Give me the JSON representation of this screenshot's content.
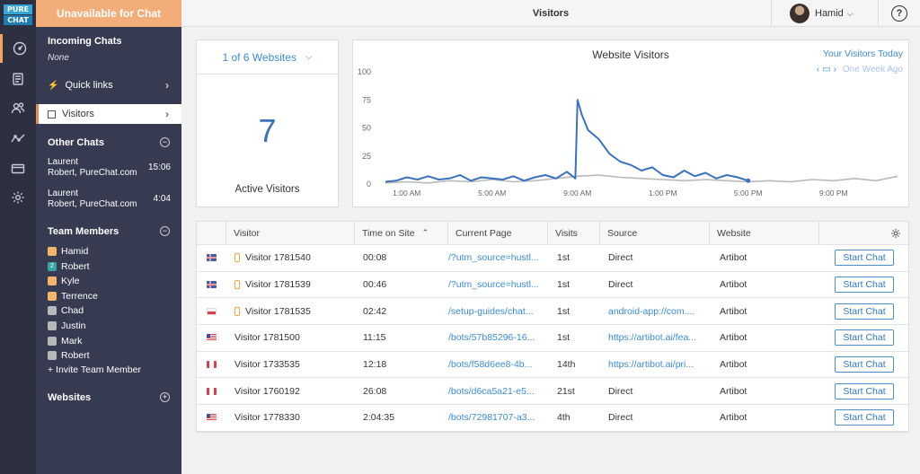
{
  "brand": {
    "logo_line1": "PURE",
    "logo_line2": "CHAT"
  },
  "sidebar": {
    "status_button": "Unavailable for Chat",
    "incoming": {
      "title": "Incoming Chats",
      "value": "None"
    },
    "nav": [
      {
        "label": "Quick links",
        "icon": "lightning-icon"
      },
      {
        "label": "Visitors",
        "icon": "visitors-icon",
        "active": true
      }
    ],
    "other_chats": {
      "title": "Other Chats",
      "toggle": "−",
      "items": [
        {
          "name": "Laurent",
          "detail": "Robert,  PureChat.com",
          "time": "15:06"
        },
        {
          "name": "Laurent",
          "detail": "Robert,  PureChat.com",
          "time": "4:04"
        }
      ]
    },
    "team": {
      "title": "Team Members",
      "toggle": "−",
      "members": [
        {
          "name": "Hamid",
          "color": "#f3b46c",
          "badge": ""
        },
        {
          "name": "Robert",
          "color": "#3aa3a6",
          "badge": "2"
        },
        {
          "name": "Kyle",
          "color": "#f3b46c",
          "badge": ""
        },
        {
          "name": "Terrence",
          "color": "#f3b46c",
          "badge": ""
        },
        {
          "name": "Chad",
          "color": "#b8b8b8",
          "badge": ""
        },
        {
          "name": "Justin",
          "color": "#b8b8b8",
          "badge": ""
        },
        {
          "name": "Mark",
          "color": "#b8b8b8",
          "badge": ""
        },
        {
          "name": "Robert",
          "color": "#b8b8b8",
          "badge": ""
        }
      ],
      "invite": "+ Invite Team Member"
    },
    "websites": {
      "title": "Websites",
      "toggle": "+"
    }
  },
  "header": {
    "title": "Visitors",
    "user": "Hamid",
    "help": "?"
  },
  "summary": {
    "site_select": "1 of 6 Websites",
    "count": "7",
    "label": "Active Visitors"
  },
  "chart_data": {
    "type": "line",
    "title": "Website Visitors",
    "link": "Your Visitors Today",
    "range_label": "One Week Ago",
    "ylim": [
      0,
      100
    ],
    "yticks": [
      "100",
      "75",
      "50",
      "25",
      "0"
    ],
    "x_ticks": [
      "1:00 AM",
      "5:00 AM",
      "9:00 AM",
      "1:00 PM",
      "5:00 PM",
      "9:00 PM"
    ],
    "x_tick_hours": [
      1,
      5,
      9,
      13,
      17,
      21
    ],
    "xlim": [
      0,
      24
    ],
    "series": [
      {
        "color": "#3a72c0",
        "x": [
          0,
          0.5,
          1,
          1.5,
          2,
          2.5,
          3,
          3.5,
          4,
          4.5,
          5,
          5.5,
          6,
          6.5,
          7,
          7.5,
          8,
          8.5,
          8.9,
          9,
          9.2,
          9.5,
          10,
          10.5,
          11,
          11.5,
          12,
          12.5,
          13,
          13.5,
          14,
          14.5,
          15,
          15.5,
          16,
          16.5,
          17
        ],
        "y": [
          2,
          3,
          6,
          4,
          7,
          4,
          5,
          8,
          3,
          6,
          5,
          4,
          7,
          3,
          6,
          8,
          5,
          11,
          5,
          75,
          62,
          48,
          40,
          27,
          20,
          17,
          12,
          15,
          8,
          6,
          12,
          7,
          10,
          5,
          8,
          6,
          3
        ]
      },
      {
        "color": "#b9b9b9",
        "x": [
          0,
          1,
          2,
          3,
          4,
          5,
          6,
          7,
          8,
          9,
          10,
          11,
          12,
          13,
          14,
          15,
          16,
          17,
          18,
          19,
          20,
          21,
          22,
          23,
          24
        ],
        "y": [
          1,
          2,
          1,
          3,
          2,
          4,
          2,
          3,
          5,
          7,
          8,
          6,
          5,
          4,
          3,
          4,
          3,
          2,
          3,
          2,
          4,
          3,
          5,
          3,
          7
        ]
      }
    ]
  },
  "table": {
    "headers": [
      "Visitor",
      "Time on Site",
      "Current Page",
      "Visits",
      "Source",
      "Website"
    ],
    "start_label": "Start Chat",
    "rows": [
      {
        "flag": "is",
        "mobile": true,
        "visitor": "Visitor 1781540",
        "time": "00:08",
        "page": "/?utm_source=hustl...",
        "visits": "1st",
        "source": "Direct",
        "source_link": false,
        "website": "Artibot"
      },
      {
        "flag": "is",
        "mobile": true,
        "visitor": "Visitor 1781539",
        "time": "00:46",
        "page": "/?utm_source=hustl...",
        "visits": "1st",
        "source": "Direct",
        "source_link": false,
        "website": "Artibot"
      },
      {
        "flag": "pl",
        "mobile": true,
        "visitor": "Visitor 1781535",
        "time": "02:42",
        "page": "/setup-guides/chat...",
        "visits": "1st",
        "source": "android-app://com....",
        "source_link": true,
        "website": "Artibot"
      },
      {
        "flag": "us",
        "mobile": false,
        "visitor": "Visitor 1781500",
        "time": "11:15",
        "page": "/bots/57b85296-16...",
        "visits": "1st",
        "source": "https://artibot.ai/fea...",
        "source_link": true,
        "website": "Artibot"
      },
      {
        "flag": "ca",
        "mobile": false,
        "visitor": "Visitor 1733535",
        "time": "12:18",
        "page": "/bots/f58d6ee8-4b...",
        "visits": "14th",
        "source": "https://artibot.ai/pri...",
        "source_link": true,
        "website": "Artibot"
      },
      {
        "flag": "ca",
        "mobile": false,
        "visitor": "Visitor 1760192",
        "time": "26:08",
        "page": "/bots/d6ca5a21-e5...",
        "visits": "21st",
        "source": "Direct",
        "source_link": false,
        "website": "Artibot"
      },
      {
        "flag": "us",
        "mobile": false,
        "visitor": "Visitor 1778330",
        "time": "2:04:35",
        "page": "/bots/72981707-a3...",
        "visits": "4th",
        "source": "Direct",
        "source_link": false,
        "website": "Artibot"
      }
    ]
  }
}
